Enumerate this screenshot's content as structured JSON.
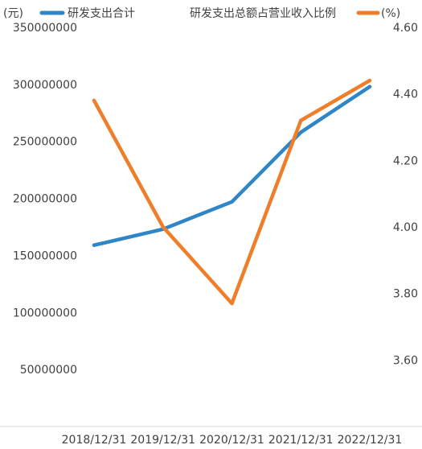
{
  "chart_data": {
    "type": "line",
    "title": "",
    "categories": [
      "2018/12/31",
      "2019/12/31",
      "2020/12/31",
      "2021/12/31",
      "2022/12/31"
    ],
    "series": [
      {
        "name": "研发支出合计",
        "axis": "left",
        "color": "#2e86c8",
        "values": [
          159000000,
          173000000,
          197000000,
          258000000,
          298000000
        ]
      },
      {
        "name": "研发支出总额占营业收入比例",
        "axis": "right",
        "color": "#f07d2a",
        "values": [
          4.38,
          4.0,
          3.77,
          4.32,
          4.44
        ]
      }
    ],
    "left_axis": {
      "unit_label": "(元)",
      "ylim": [
        0,
        350000000
      ],
      "ticks": [
        "350000000",
        "300000000",
        "250000000",
        "200000000",
        "150000000",
        "100000000",
        "50000000"
      ],
      "tick_values": [
        350000000,
        300000000,
        250000000,
        200000000,
        150000000,
        100000000,
        50000000
      ]
    },
    "right_axis": {
      "unit_label": "(%)",
      "ylim": [
        3.4,
        4.6
      ],
      "ticks": [
        "4.60",
        "4.40",
        "4.20",
        "4.00",
        "3.80",
        "3.60"
      ],
      "tick_values": [
        4.6,
        4.4,
        4.2,
        4.0,
        3.8,
        3.6
      ]
    },
    "grid": false,
    "legend": "top"
  }
}
